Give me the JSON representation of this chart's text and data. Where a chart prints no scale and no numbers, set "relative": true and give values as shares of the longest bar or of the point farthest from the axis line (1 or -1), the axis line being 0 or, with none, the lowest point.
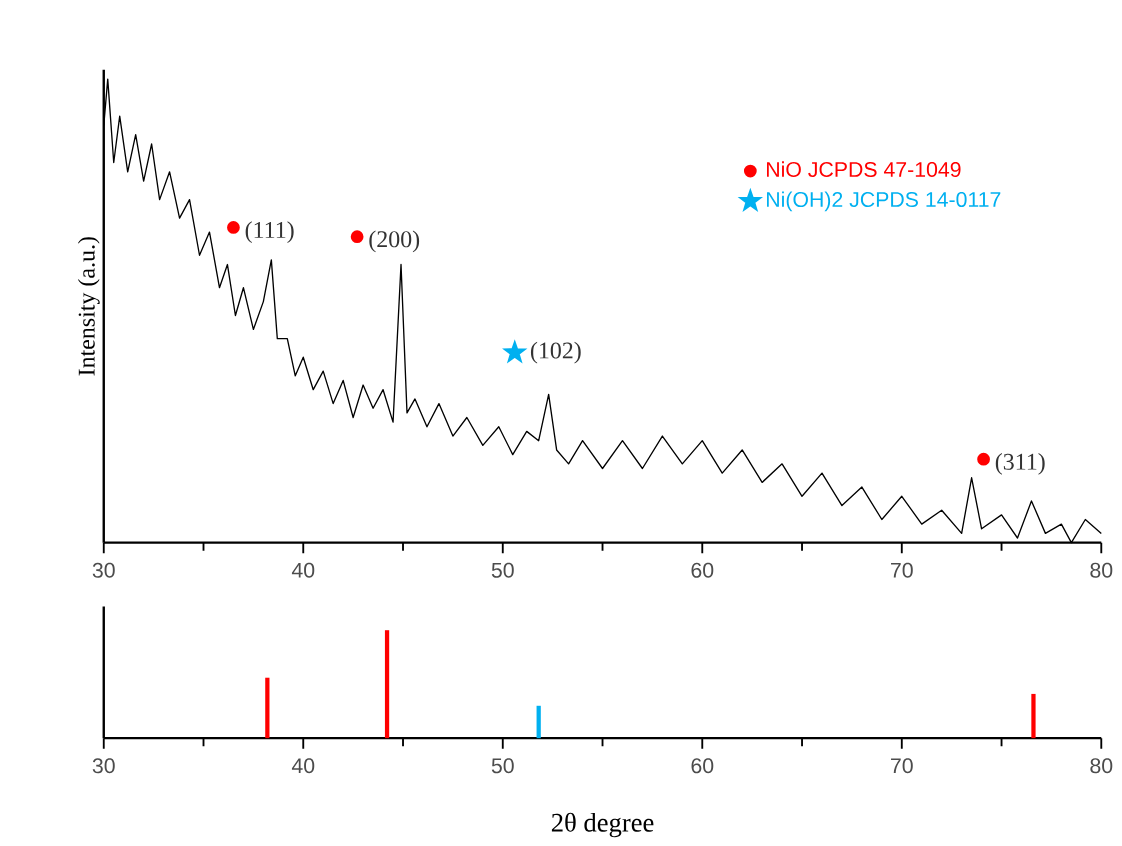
{
  "chart_data": [
    {
      "type": "line",
      "relative": true,
      "ylabel": "Intensity (a.u.)",
      "xlim": [
        30,
        80
      ],
      "xticks": [
        30,
        40,
        50,
        60,
        70,
        80
      ],
      "legend": "top right",
      "series": [
        {
          "type": "line",
          "color": "#000000",
          "x": [
            30.0,
            30.2,
            30.5,
            30.8,
            31.2,
            31.6,
            32.0,
            32.4,
            32.8,
            33.3,
            33.8,
            34.3,
            34.8,
            35.3,
            35.8,
            36.2,
            36.6,
            37.0,
            37.5,
            38.0,
            38.4,
            38.7,
            39.2,
            39.6,
            40.0,
            40.5,
            41.0,
            41.5,
            42.0,
            42.5,
            43.0,
            43.5,
            44.0,
            44.5,
            44.9,
            45.2,
            45.6,
            46.2,
            46.8,
            47.5,
            48.2,
            49.0,
            49.8,
            50.5,
            51.2,
            51.8,
            52.3,
            52.7,
            53.3,
            54.0,
            55.0,
            56.0,
            57.0,
            58.0,
            59.0,
            60.0,
            61.0,
            62.0,
            63.0,
            64.0,
            65.0,
            66.0,
            67.0,
            68.0,
            69.0,
            70.0,
            71.0,
            72.0,
            73.0,
            73.5,
            74.0,
            75.0,
            75.8,
            76.5,
            77.2,
            78.0,
            78.5,
            79.2,
            80.0
          ],
          "values": [
            0.9,
            1.0,
            0.82,
            0.92,
            0.8,
            0.88,
            0.78,
            0.86,
            0.74,
            0.8,
            0.7,
            0.74,
            0.62,
            0.67,
            0.55,
            0.6,
            0.49,
            0.55,
            0.46,
            0.52,
            0.61,
            0.44,
            0.44,
            0.36,
            0.4,
            0.33,
            0.37,
            0.3,
            0.35,
            0.27,
            0.34,
            0.29,
            0.33,
            0.26,
            0.6,
            0.28,
            0.31,
            0.25,
            0.3,
            0.23,
            0.27,
            0.21,
            0.25,
            0.19,
            0.24,
            0.22,
            0.32,
            0.2,
            0.17,
            0.22,
            0.16,
            0.22,
            0.16,
            0.23,
            0.17,
            0.22,
            0.15,
            0.2,
            0.13,
            0.17,
            0.1,
            0.15,
            0.08,
            0.12,
            0.05,
            0.1,
            0.04,
            0.07,
            0.02,
            0.14,
            0.03,
            0.06,
            0.01,
            0.09,
            0.02,
            0.04,
            0.0,
            0.05,
            0.02
          ]
        },
        {
          "type": "scatter",
          "name": "NiO JCPDS 47-1049",
          "color": "#ff0000",
          "marker": "circle",
          "x": [
            36.5,
            42.7,
            74.1
          ],
          "values": [
            0.68,
            0.66,
            0.18
          ]
        },
        {
          "type": "scatter",
          "name": "Ni(OH)2 JCPDS 14-0117",
          "color": "#00b0f0",
          "marker": "star",
          "x": [
            50.6
          ],
          "values": [
            0.41
          ]
        }
      ],
      "annotations": [
        {
          "text": "(111)",
          "x": 36.9,
          "y": 0.67
        },
        {
          "text": "(200)",
          "x": 43.1,
          "y": 0.65
        },
        {
          "text": "(102)",
          "x": 51.2,
          "y": 0.41
        },
        {
          "text": "(311)",
          "x": 74.5,
          "y": 0.17
        }
      ]
    },
    {
      "type": "bar",
      "relative": true,
      "xlabel": "2θ degree",
      "xlim": [
        30,
        80
      ],
      "xticks": [
        30,
        40,
        50,
        60,
        70,
        80
      ],
      "x": [
        38.2,
        44.2,
        51.8,
        76.6
      ],
      "values": [
        0.56,
        1.0,
        0.3,
        0.41
      ],
      "colors": [
        "#ff0000",
        "#ff0000",
        "#00b0f0",
        "#ff0000"
      ]
    }
  ]
}
